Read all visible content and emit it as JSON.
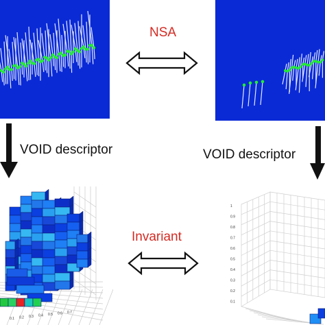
{
  "labels": {
    "top_arrow": "NSA",
    "bottom_arrow": "Invariant",
    "left_descriptor": "VOID descriptor",
    "right_descriptor": "VOID descriptor"
  },
  "bottom_right_plot": {
    "z_ticks": [
      "1",
      "0.9",
      "0.8",
      "0.7",
      "0.6",
      "0.5",
      "0.4",
      "0.3",
      "0.2",
      "0.1"
    ]
  },
  "bottom_left_plot": {
    "x_ticks": [
      "0.1",
      "0.2",
      "0.3",
      "0.4",
      "0.5",
      "0.6",
      "0.7"
    ]
  },
  "colors": {
    "panel_blue": "#0a2ad6",
    "label_red": "#d42a22",
    "point_green": "#22ee33",
    "normal_white": "#e8ecff"
  }
}
